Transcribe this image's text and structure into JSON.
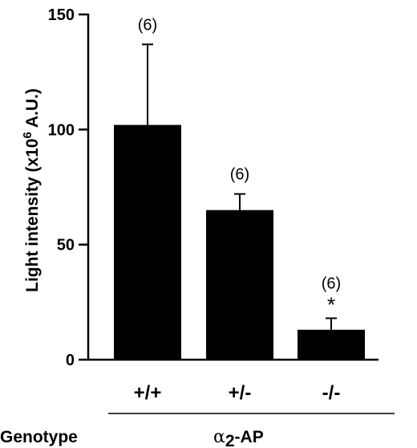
{
  "chart_data": {
    "type": "bar",
    "categories": [
      "+/+",
      "+/-",
      "-/-"
    ],
    "values": [
      102,
      65,
      13
    ],
    "error_upper": [
      137,
      72,
      18
    ],
    "n_labels": [
      "(6)",
      "(6)",
      "(6)"
    ],
    "significance": [
      "",
      "",
      "*"
    ],
    "ylim": [
      0,
      150
    ],
    "yticks": [
      0,
      50,
      100,
      150
    ],
    "ylabel_main": "Light intensity (x10",
    "ylabel_sup": "6",
    "ylabel_tail": " A.U.)",
    "xlabel_left": "Genotype",
    "xlabel_alpha": "α",
    "xlabel_sub": "2",
    "xlabel_tail": "-AP",
    "colors": {
      "bar": "#000000",
      "axis": "#000000"
    }
  }
}
